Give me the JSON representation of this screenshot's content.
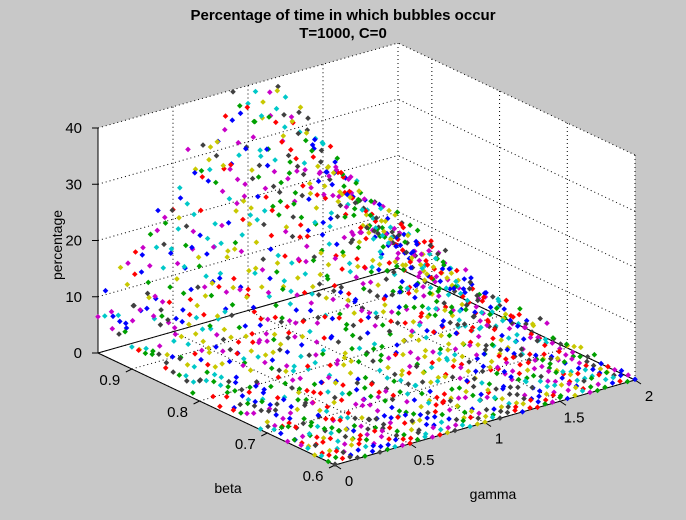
{
  "chart_data": {
    "type": "scatter",
    "title": "Percentage of time in which bubbles occur",
    "subtitle": "T=1000, C=0",
    "xlabel": "gamma",
    "ylabel": "beta",
    "zlabel": "percentage",
    "xlim": [
      0,
      2
    ],
    "ylim": [
      0.6,
      0.95
    ],
    "zlim": [
      0,
      40
    ],
    "x_ticks": [
      "0",
      "0.5",
      "1",
      "1.5",
      "2"
    ],
    "y_ticks": [
      "0.6",
      "0.7",
      "0.8",
      "0.9"
    ],
    "z_ticks": [
      "0",
      "10",
      "20",
      "30",
      "40"
    ],
    "grid": true,
    "marker": "diamond",
    "colors": [
      "#0000ff",
      "#00a000",
      "#ff0000",
      "#00c8c8",
      "#c800c8",
      "#c8c800",
      "#404040"
    ],
    "surface_description": {
      "x_grid_step": 0.05,
      "y_grid_step": 0.01,
      "peak": {
        "x": 1.0,
        "y": 0.95,
        "z": 38
      },
      "noise_amplitude": 3
    }
  }
}
